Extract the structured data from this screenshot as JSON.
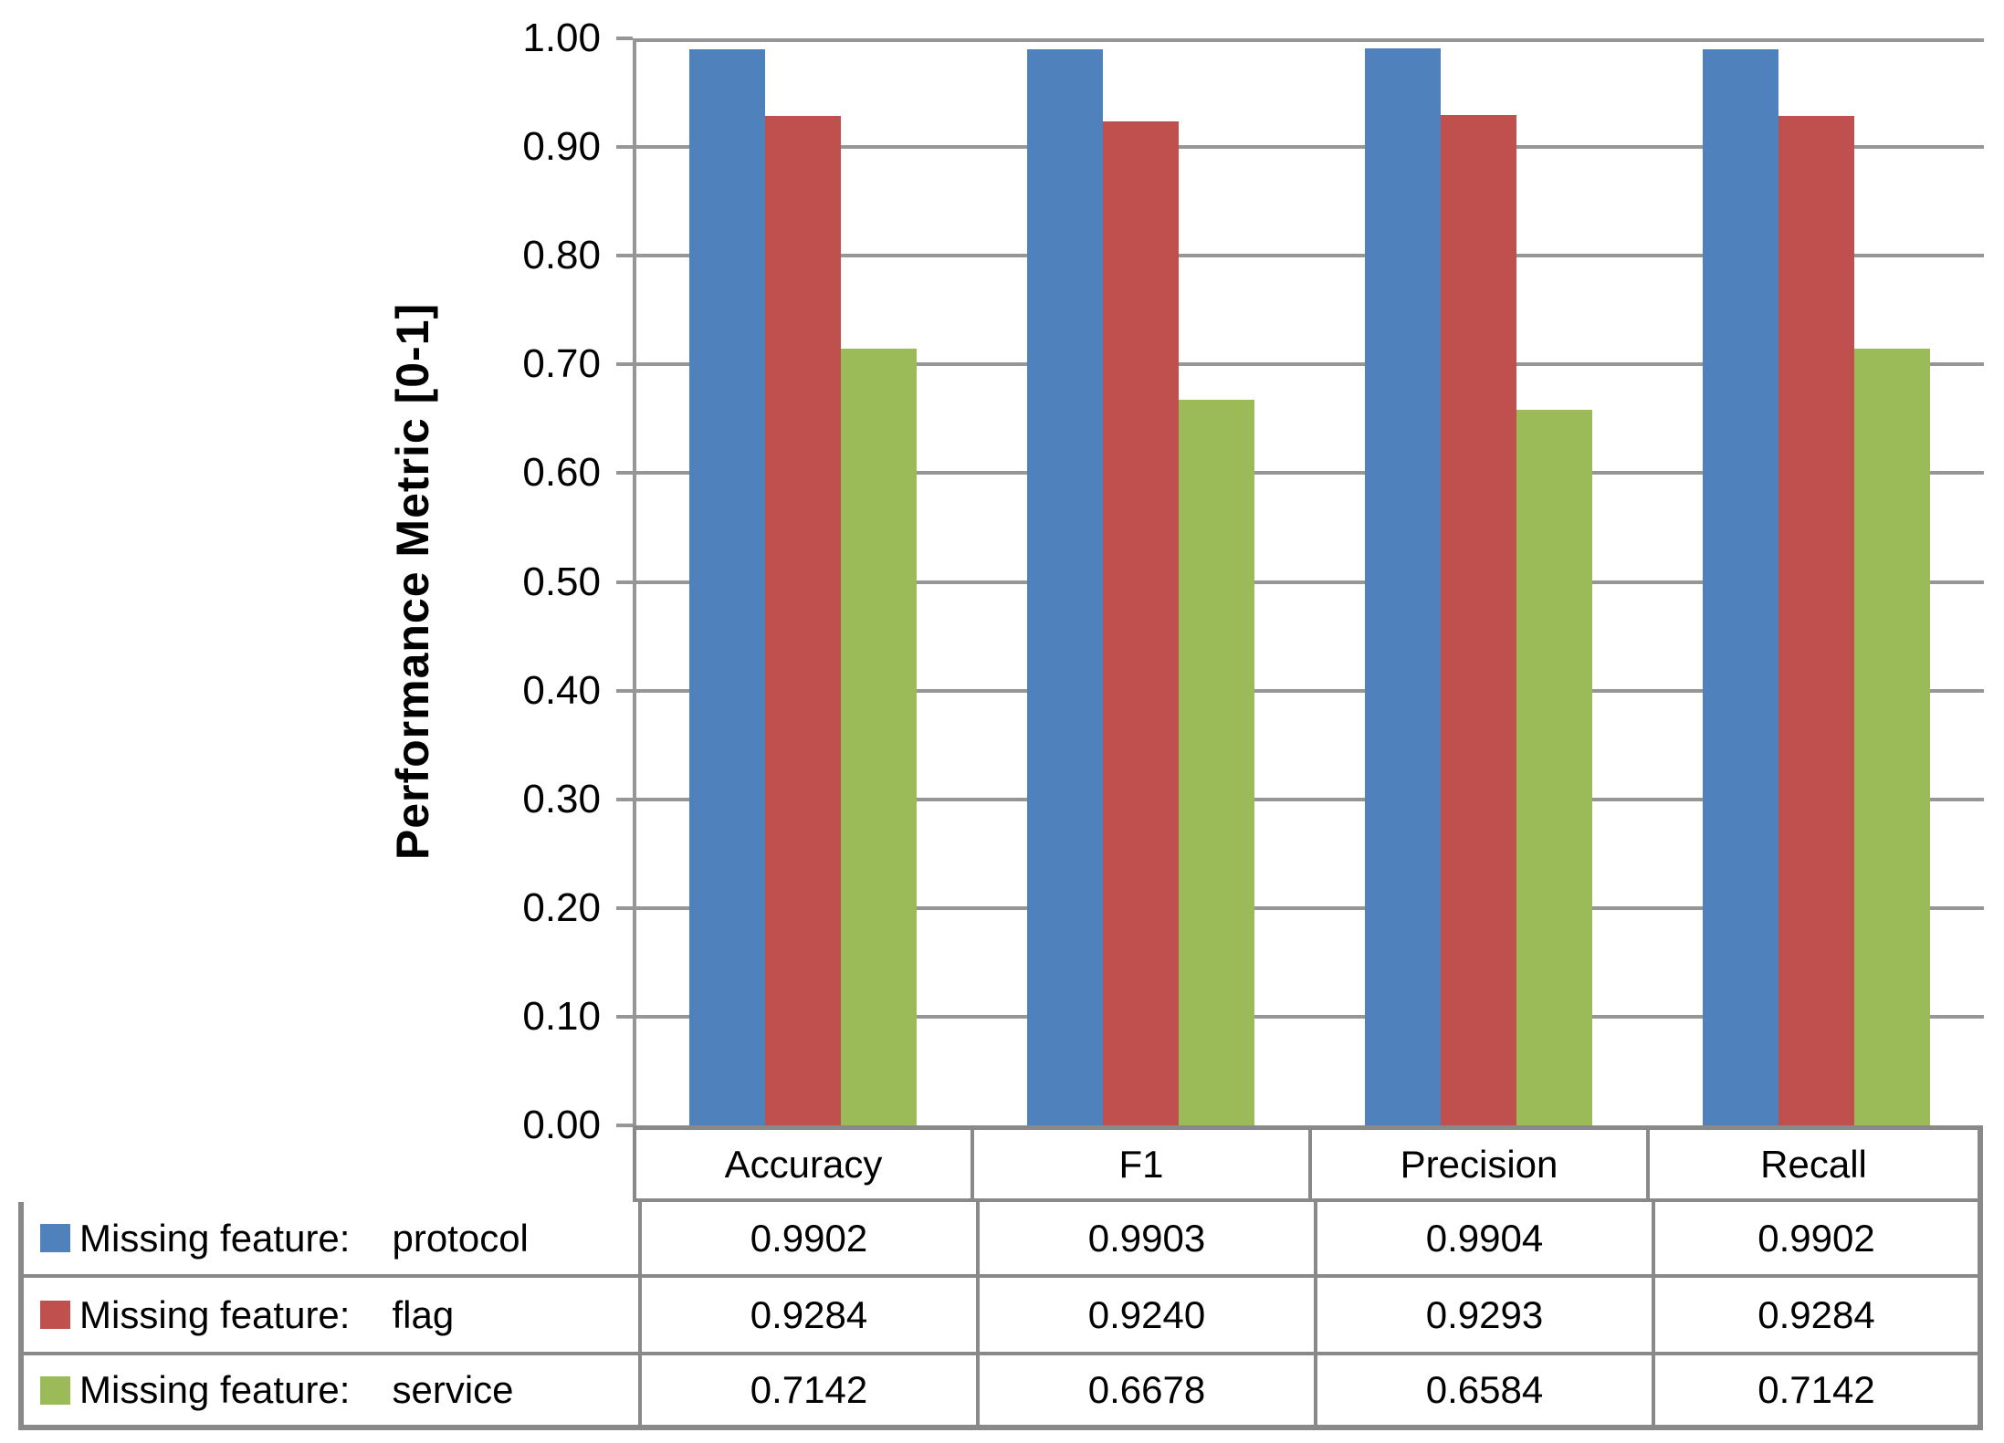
{
  "chart_data": {
    "type": "bar",
    "categories": [
      "Accuracy",
      "F1",
      "Precision",
      "Recall"
    ],
    "series": [
      {
        "label_prefix": "Missing feature:",
        "feature": "protocol",
        "color": "#4F81BD",
        "values": [
          0.9902,
          0.9903,
          0.9904,
          0.9902
        ],
        "cell_text": [
          "0.9902",
          "0.9903",
          "0.9904",
          "0.9902"
        ]
      },
      {
        "label_prefix": "Missing feature:",
        "feature": "flag",
        "color": "#C0504D",
        "values": [
          0.9284,
          0.924,
          0.9293,
          0.9284
        ],
        "cell_text": [
          "0.9284",
          "0.9240",
          "0.9293",
          "0.9284"
        ]
      },
      {
        "label_prefix": "Missing feature:",
        "feature": "service",
        "color": "#9BBB59",
        "values": [
          0.7142,
          0.6678,
          0.6584,
          0.7142
        ],
        "cell_text": [
          "0.7142",
          "0.6678",
          "0.6584",
          "0.7142"
        ]
      }
    ],
    "title": "",
    "xlabel": "",
    "ylabel": "Performance Metric [0-1]",
    "ylim": [
      0,
      1
    ],
    "ytick_labels": [
      "1.00",
      "0.90",
      "0.80",
      "0.70",
      "0.60",
      "0.50",
      "0.40",
      "0.30",
      "0.20",
      "0.10",
      "0.00"
    ],
    "grid": true,
    "gridline_color": "#969696",
    "table_border_color": "#898989",
    "legend_position": "table-left"
  }
}
